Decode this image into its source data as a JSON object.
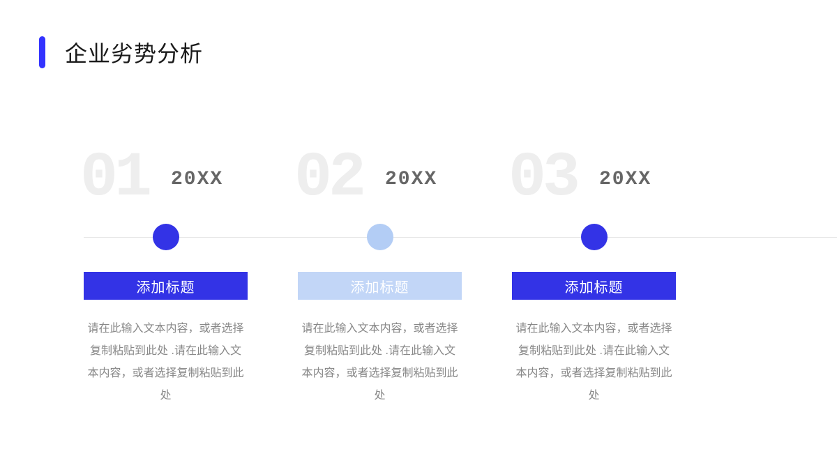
{
  "header": {
    "title": "企业劣势分析",
    "accent_color": "#3333ff"
  },
  "timeline": {
    "line_color": "#e5e5e5",
    "items": [
      {
        "number": "01",
        "year": "20XX",
        "dot_color": "#3333e6",
        "title_bg_color": "#3333e6",
        "title": "添加标题",
        "body": "请在此输入文本内容，或者选择复制粘贴到此处 .请在此输入文本内容，或者选择复制粘贴到此处"
      },
      {
        "number": "02",
        "year": "20XX",
        "dot_color": "#b3cdf5",
        "title_bg_color": "#c2d6f7",
        "title": "添加标题",
        "body": "请在此输入文本内容，或者选择复制粘贴到此处 .请在此输入文本内容，或者选择复制粘贴到此处"
      },
      {
        "number": "03",
        "year": "20XX",
        "dot_color": "#3333e6",
        "title_bg_color": "#3333e6",
        "title": "添加标题",
        "body": "请在此输入文本内容，或者选择复制粘贴到此处 .请在此输入文本内容，或者选择复制粘贴到此处"
      }
    ]
  }
}
